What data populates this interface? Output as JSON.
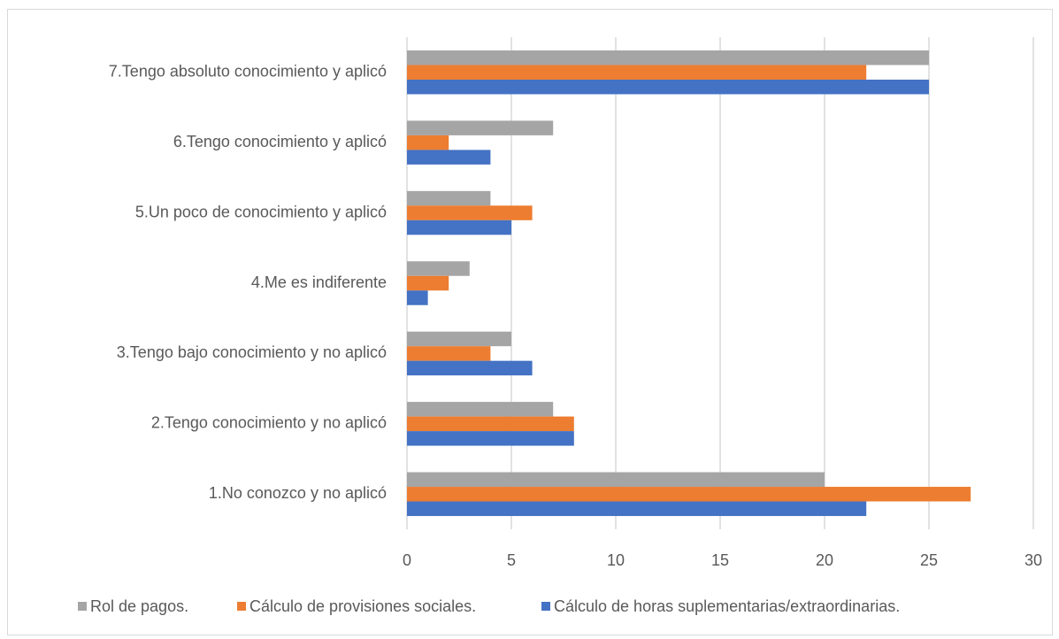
{
  "chart_data": {
    "type": "bar",
    "orientation": "horizontal",
    "categories": [
      "1.No conozco y no aplicó ",
      "2.Tengo conocimiento y no aplicó",
      "3.Tengo bajo conocimiento y no aplicó",
      "4.Me es indiferente",
      "5.Un poco de conocimiento y aplicó",
      "6.Tengo conocimiento y aplicó",
      "7.Tengo absoluto conocimiento y aplicó"
    ],
    "series": [
      {
        "name": "Rol de pagos.",
        "color": "#a5a5a5",
        "values": [
          20,
          7,
          5,
          3,
          4,
          7,
          25
        ]
      },
      {
        "name": "Cálculo de provisiones sociales.",
        "color": "#ed7d31",
        "values": [
          27,
          8,
          4,
          2,
          6,
          2,
          22
        ]
      },
      {
        "name": "Cálculo de horas suplementarias/extraordinarias.",
        "color": "#4472c4",
        "values": [
          22,
          8,
          6,
          1,
          5,
          4,
          25
        ]
      }
    ],
    "xlim": [
      0,
      30
    ],
    "xticks": [
      0,
      5,
      10,
      15,
      20,
      25,
      30
    ],
    "grid": true,
    "legend": "bottom"
  }
}
